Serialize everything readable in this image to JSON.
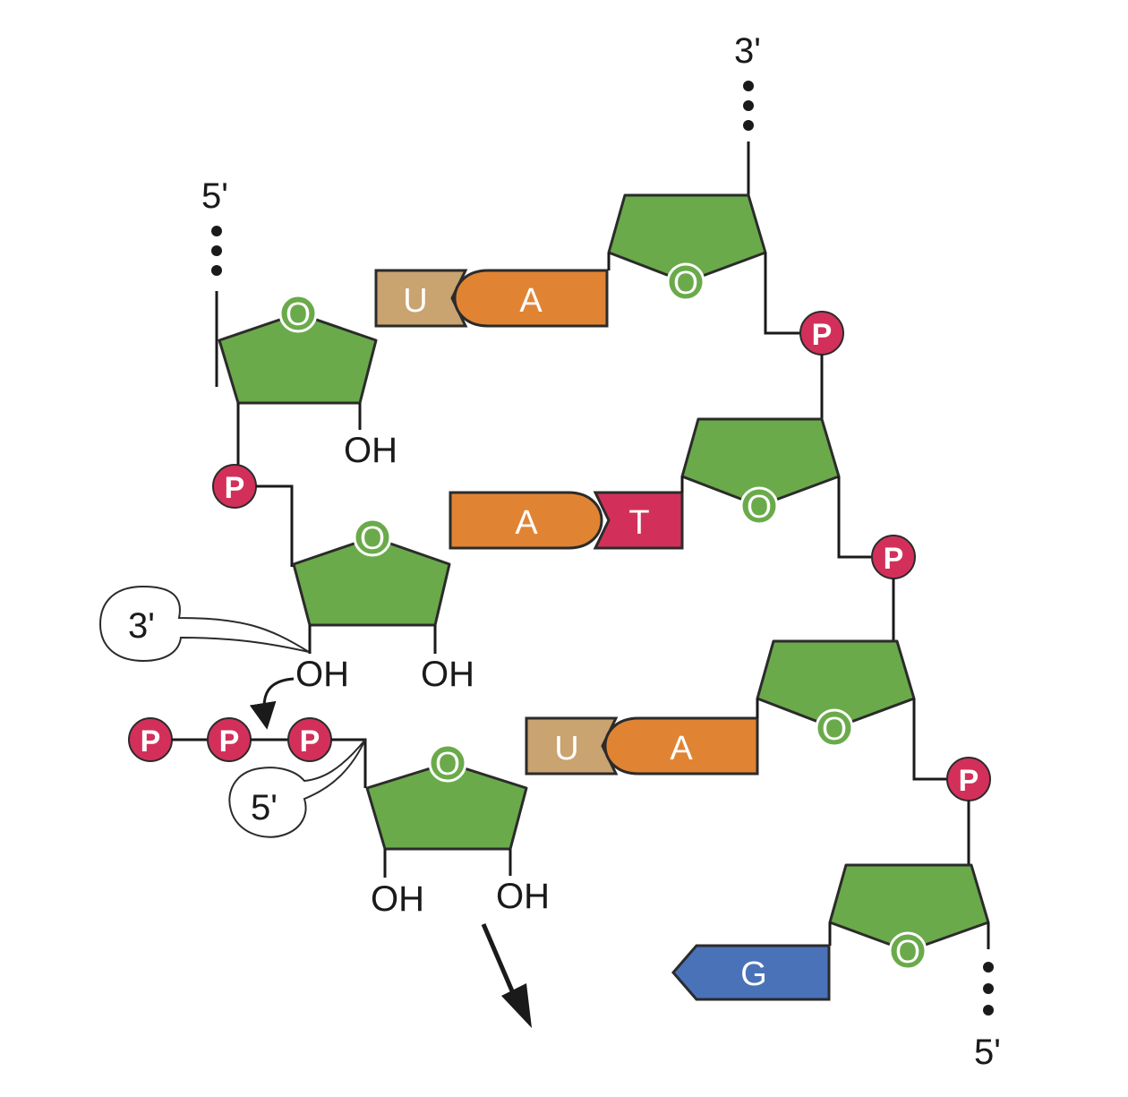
{
  "colors": {
    "sugar": "#6aaa4a",
    "phosphate": "#d2305a",
    "adenine": "#e08433",
    "uracil": "#c9a370",
    "thymine": "#d2305a",
    "guanine": "#4a72b8",
    "bubble": "#ffffff"
  },
  "strand_ends": {
    "top_left": "5'",
    "top_right": "3'",
    "bottom_right": "5'"
  },
  "ring_label": "O",
  "hydroxyl_label": "OH",
  "phosphate_label": "P",
  "bases": {
    "pair1": {
      "left": "U",
      "right": "A"
    },
    "pair2": {
      "left": "A",
      "right": "T"
    },
    "pair3": {
      "left": "U",
      "right": "A"
    },
    "single": "G"
  },
  "callouts": {
    "three_prime": "3'",
    "five_prime": "5'"
  }
}
